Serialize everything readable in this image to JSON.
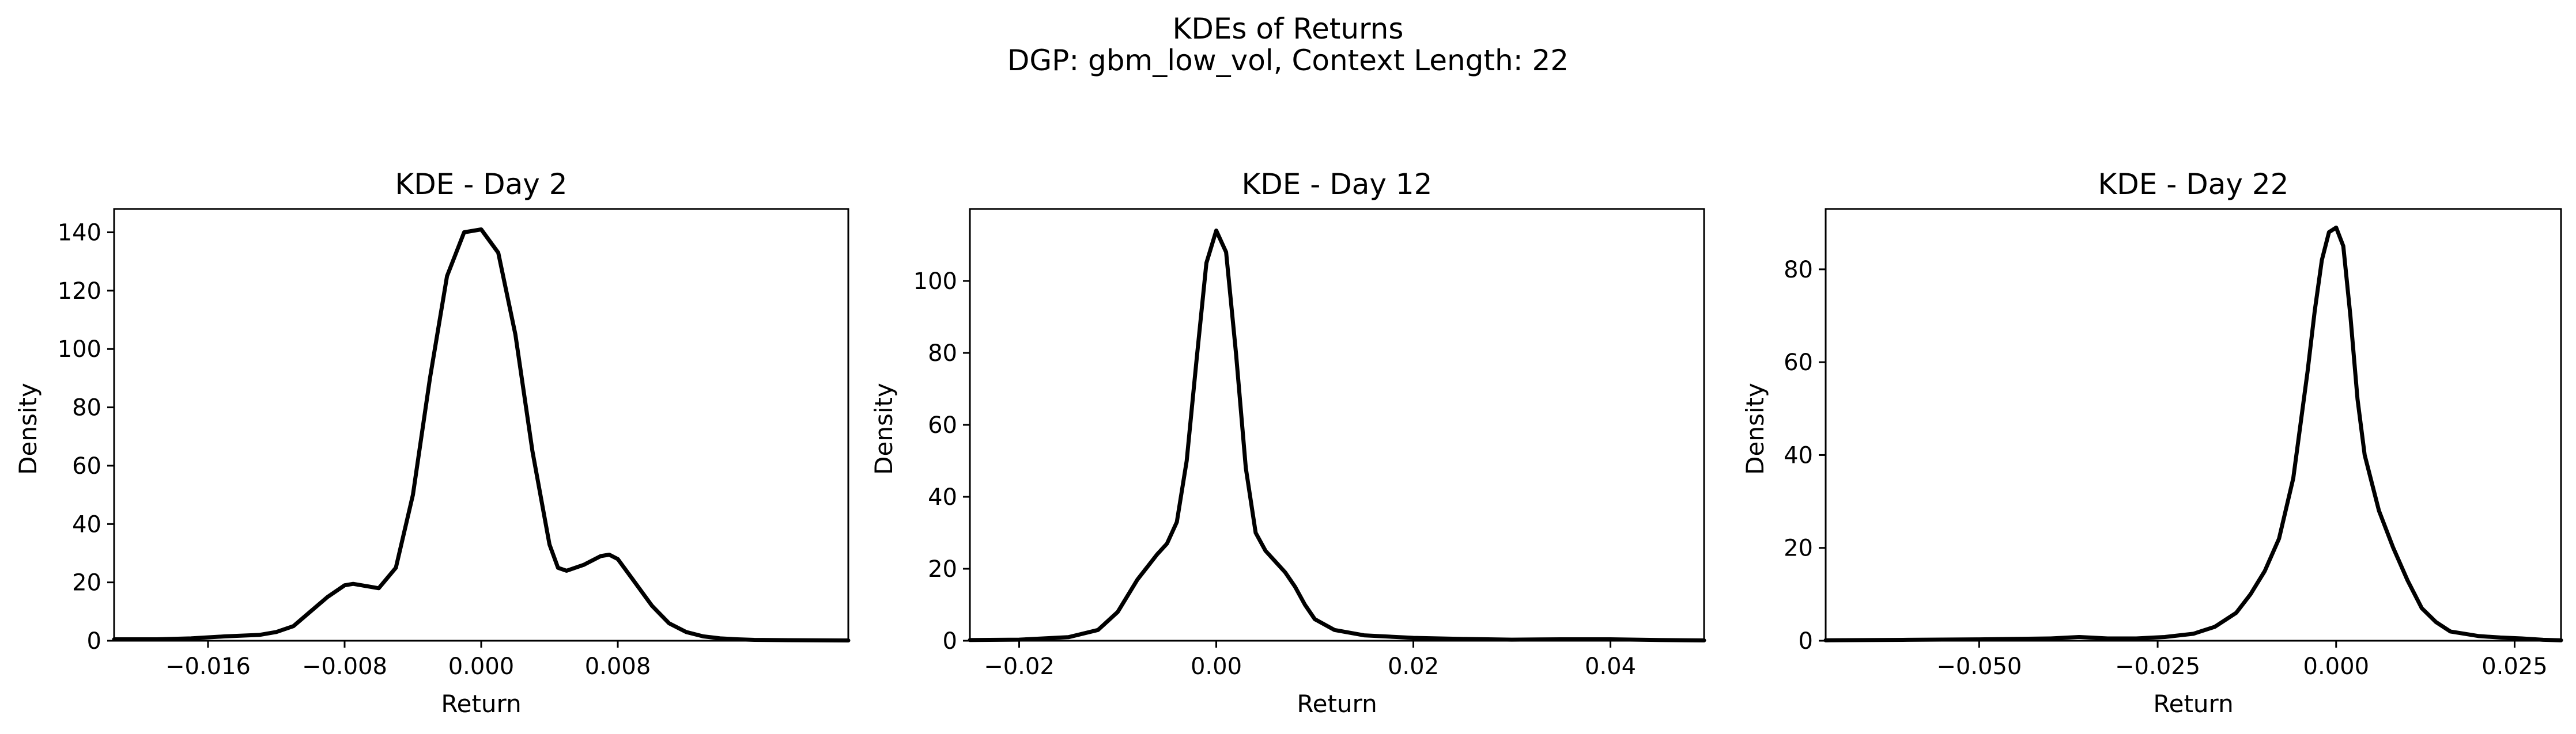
{
  "figure": {
    "suptitle_line1": "KDEs of Returns",
    "suptitle_line2": "DGP: gbm_low_vol, Context Length: 22"
  },
  "chart_data": [
    {
      "type": "line",
      "title": "KDE - Day 2",
      "xlabel": "Return",
      "ylabel": "Density",
      "xlim": [
        -0.0215,
        0.0215
      ],
      "ylim": [
        0,
        148
      ],
      "xticks": [
        -0.016,
        -0.008,
        0.0,
        0.008
      ],
      "xtick_labels": [
        "−0.016",
        "−0.008",
        "0.000",
        "0.008"
      ],
      "yticks": [
        0,
        20,
        40,
        60,
        80,
        100,
        120,
        140
      ],
      "ytick_labels": [
        "0",
        "20",
        "40",
        "60",
        "80",
        "100",
        "120",
        "140"
      ],
      "grid": false,
      "series": [
        {
          "color": "#000000",
          "x": [
            -0.0215,
            -0.019,
            -0.017,
            -0.015,
            -0.013,
            -0.012,
            -0.011,
            -0.01,
            -0.009,
            -0.008,
            -0.0075,
            -0.007,
            -0.006,
            -0.005,
            -0.004,
            -0.003,
            -0.002,
            -0.001,
            0.0,
            0.001,
            0.002,
            0.003,
            0.004,
            0.0045,
            0.005,
            0.006,
            0.007,
            0.0075,
            0.008,
            0.009,
            0.01,
            0.011,
            0.012,
            0.013,
            0.014,
            0.015,
            0.016,
            0.018,
            0.0215
          ],
          "y": [
            0.5,
            0.5,
            0.8,
            1.5,
            2,
            3,
            5,
            10,
            15,
            19,
            19.5,
            19,
            18,
            25,
            50,
            90,
            125,
            140,
            141,
            133,
            105,
            65,
            33,
            25,
            24,
            26,
            29,
            29.5,
            28,
            20,
            12,
            6,
            3,
            1.5,
            0.8,
            0.5,
            0.3,
            0.2,
            0.1
          ]
        }
      ]
    },
    {
      "type": "line",
      "title": "KDE - Day 12",
      "xlabel": "Return",
      "ylabel": "Density",
      "xlim": [
        -0.025,
        0.0495
      ],
      "ylim": [
        0,
        120
      ],
      "xticks": [
        -0.02,
        0.0,
        0.02,
        0.04
      ],
      "xtick_labels": [
        "−0.02",
        "0.00",
        "0.02",
        "0.04"
      ],
      "yticks": [
        0,
        20,
        40,
        60,
        80,
        100
      ],
      "ytick_labels": [
        "0",
        "20",
        "40",
        "60",
        "80",
        "100"
      ],
      "grid": false,
      "series": [
        {
          "color": "#000000",
          "x": [
            -0.025,
            -0.02,
            -0.015,
            -0.012,
            -0.01,
            -0.008,
            -0.006,
            -0.005,
            -0.004,
            -0.003,
            -0.002,
            -0.001,
            0.0,
            0.001,
            0.002,
            0.003,
            0.004,
            0.005,
            0.006,
            0.007,
            0.008,
            0.009,
            0.01,
            0.012,
            0.015,
            0.02,
            0.025,
            0.03,
            0.035,
            0.04,
            0.045,
            0.0495
          ],
          "y": [
            0.2,
            0.3,
            1,
            3,
            8,
            17,
            24,
            27,
            33,
            50,
            78,
            105,
            114,
            108,
            80,
            48,
            30,
            25,
            22,
            19,
            15,
            10,
            6,
            3,
            1.5,
            0.8,
            0.5,
            0.3,
            0.4,
            0.4,
            0.2,
            0.1
          ]
        }
      ]
    },
    {
      "type": "line",
      "title": "KDE - Day 22",
      "xlabel": "Return",
      "ylabel": "Density",
      "xlim": [
        -0.0715,
        0.0315
      ],
      "ylim": [
        0,
        93
      ],
      "xticks": [
        -0.05,
        -0.025,
        0.0,
        0.025
      ],
      "xtick_labels": [
        "−0.050",
        "−0.025",
        "0.000",
        "0.025"
      ],
      "yticks": [
        0,
        20,
        40,
        60,
        80
      ],
      "ytick_labels": [
        "0",
        "20",
        "40",
        "60",
        "80"
      ],
      "grid": false,
      "series": [
        {
          "color": "#000000",
          "x": [
            -0.0715,
            -0.06,
            -0.05,
            -0.04,
            -0.036,
            -0.032,
            -0.028,
            -0.024,
            -0.02,
            -0.017,
            -0.014,
            -0.012,
            -0.01,
            -0.008,
            -0.006,
            -0.004,
            -0.003,
            -0.002,
            -0.001,
            0.0,
            0.001,
            0.002,
            0.003,
            0.004,
            0.006,
            0.008,
            0.01,
            0.012,
            0.014,
            0.016,
            0.018,
            0.02,
            0.023,
            0.026,
            0.029,
            0.0315
          ],
          "y": [
            0.1,
            0.2,
            0.3,
            0.5,
            0.8,
            0.5,
            0.5,
            0.8,
            1.5,
            3,
            6,
            10,
            15,
            22,
            35,
            58,
            71,
            82,
            88,
            89,
            85,
            70,
            52,
            40,
            28,
            20,
            13,
            7,
            4,
            2,
            1.5,
            1,
            0.7,
            0.5,
            0.2,
            0.1
          ]
        }
      ]
    }
  ]
}
